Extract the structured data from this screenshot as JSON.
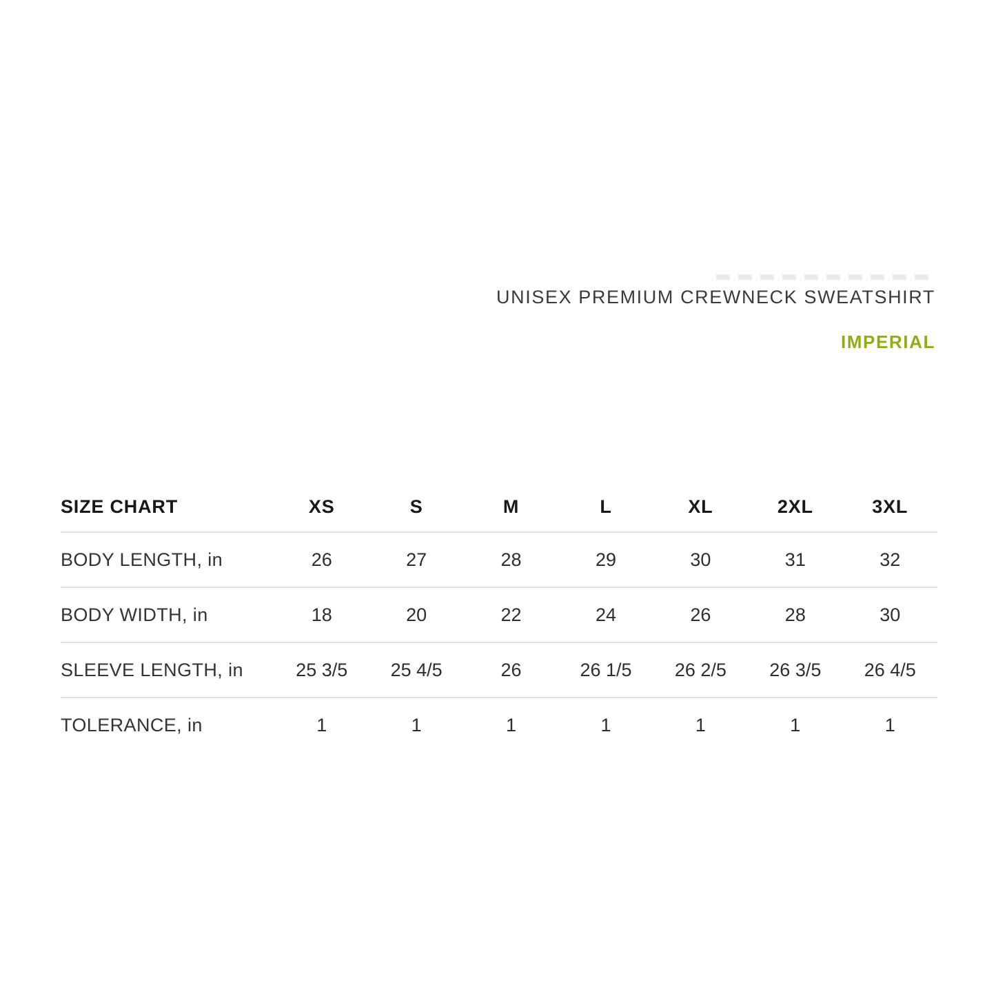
{
  "page": {
    "background_color": "#ffffff"
  },
  "header": {
    "product_title": "UNISEX PREMIUM CREWNECK SWEATSHIRT",
    "unit_label": "IMPERIAL",
    "title_color": "#3a3a3a",
    "accent_color": "#8cb014"
  },
  "size_chart": {
    "corner_label": "SIZE CHART",
    "columns": [
      "XS",
      "S",
      "M",
      "L",
      "XL",
      "2XL",
      "3XL"
    ],
    "rows": [
      {
        "label": "BODY LENGTH, in",
        "values": [
          "26",
          "27",
          "28",
          "29",
          "30",
          "31",
          "32"
        ]
      },
      {
        "label": "BODY WIDTH, in",
        "values": [
          "18",
          "20",
          "22",
          "24",
          "26",
          "28",
          "30"
        ]
      },
      {
        "label": "SLEEVE LENGTH, in",
        "values": [
          "25 3/5",
          "25 4/5",
          "26",
          "26 1/5",
          "26 2/5",
          "26 3/5",
          "26 4/5"
        ]
      },
      {
        "label": "TOLERANCE, in",
        "values": [
          "1",
          "1",
          "1",
          "1",
          "1",
          "1",
          "1"
        ]
      }
    ]
  }
}
